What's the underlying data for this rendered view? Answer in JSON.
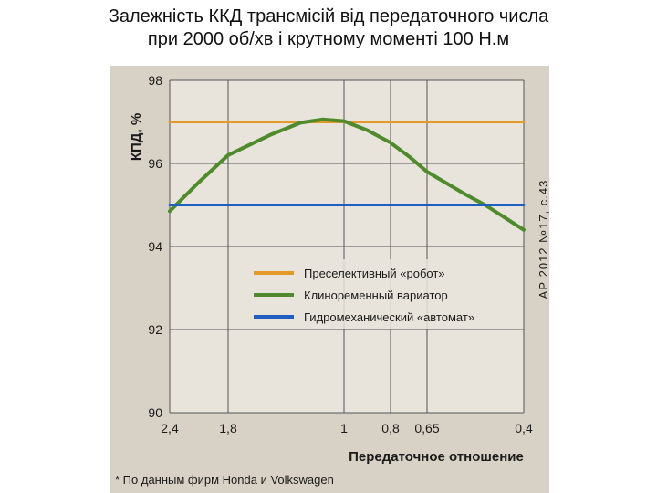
{
  "slide": {
    "title_line1": "Залежність ККД трансмісій від передаточного числа",
    "title_line2": "при 2000 об/хв і крутному моменті 100 Н.м"
  },
  "chart_data": {
    "type": "line",
    "ylabel": "КПД, %",
    "xlabel": "Передаточное отношение",
    "x_tick_labels": [
      "2,4",
      "1,8",
      "1",
      "0,8",
      "0,65",
      "0,4"
    ],
    "y_ticks": [
      90,
      92,
      94,
      96,
      98
    ],
    "ylim": [
      90,
      98
    ],
    "grid": true,
    "legend_position": "center-right",
    "source_note": "АР 2012 №17, с.43",
    "footnote": "* По данным фирм Honda и Volkswagen",
    "series": [
      {
        "name": "Преселективный «робот»",
        "color": "#e39a2b",
        "x": [
          "2,4",
          "0,4"
        ],
        "values": [
          97.0,
          97.0
        ]
      },
      {
        "name": "Клиноременный вариатор",
        "color": "#4f8a2c",
        "x": [
          "2,4",
          "2,1",
          "1,8",
          "1,5",
          "1,3",
          "1,15",
          "1",
          "0,9",
          "0,8",
          "0,72",
          "0,65",
          "0,55",
          "0,5",
          "0,45",
          "0,4"
        ],
        "values": [
          94.85,
          95.55,
          96.2,
          96.7,
          96.98,
          97.06,
          97.02,
          96.8,
          96.5,
          96.15,
          95.8,
          95.25,
          95.0,
          94.7,
          94.4
        ]
      },
      {
        "name": "Гидромеханический «автомат»",
        "color": "#1f5fbf",
        "x": [
          "2,4",
          "0,4"
        ],
        "values": [
          95.0,
          95.0
        ]
      }
    ]
  }
}
